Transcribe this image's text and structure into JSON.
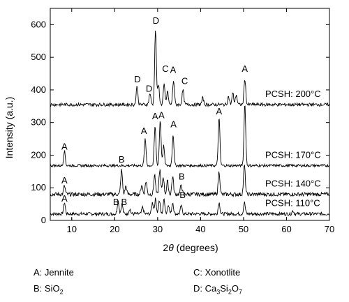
{
  "chart_data": {
    "type": "line",
    "xlabel_prefix": "2",
    "xlabel_theta": "θ",
    "xlabel_suffix": " (degrees)",
    "ylabel": "Intensity (a.u.)",
    "xlim": [
      5,
      70
    ],
    "ylim": [
      0,
      650
    ],
    "xticks": [
      10,
      20,
      30,
      40,
      50,
      60,
      70
    ],
    "yticks": [
      0,
      100,
      200,
      300,
      400,
      500,
      600
    ],
    "grid": false,
    "series": [
      {
        "name": "PCSH: 110°C",
        "baseline": 20,
        "noise": 10,
        "peaks": [
          [
            8.3,
            35
          ],
          [
            20.8,
            40
          ],
          [
            21.7,
            30
          ],
          [
            23.5,
            15
          ],
          [
            26.5,
            20
          ],
          [
            28.8,
            35
          ],
          [
            29.5,
            45
          ],
          [
            30.4,
            40
          ],
          [
            31.5,
            45
          ],
          [
            32.5,
            30
          ],
          [
            33.5,
            35
          ],
          [
            35.5,
            25
          ],
          [
            44.3,
            35
          ],
          [
            50.2,
            35
          ],
          [
            61.5,
            10
          ]
        ],
        "peak_labels": [
          [
            8.3,
            58,
            "A"
          ],
          [
            20.3,
            47,
            "B"
          ],
          [
            22.2,
            47,
            "B"
          ],
          [
            35.8,
            68,
            "B"
          ]
        ]
      },
      {
        "name": "PCSH: 140°C",
        "baseline": 80,
        "noise": 12,
        "peaks": [
          [
            8.3,
            25
          ],
          [
            21.6,
            75
          ],
          [
            22.6,
            25
          ],
          [
            26.3,
            30
          ],
          [
            27.3,
            40
          ],
          [
            29.3,
            60
          ],
          [
            30.5,
            75
          ],
          [
            31.3,
            55
          ],
          [
            32.3,
            40
          ],
          [
            33.5,
            55
          ],
          [
            35.5,
            30
          ],
          [
            44.3,
            70
          ],
          [
            50.2,
            90
          ]
        ],
        "peak_labels": [
          [
            8.3,
            113,
            "A"
          ],
          [
            21.6,
            178,
            "B"
          ],
          [
            35.6,
            125,
            "B"
          ]
        ]
      },
      {
        "name": "PCSH: 170°C",
        "baseline": 168,
        "noise": 8,
        "peaks": [
          [
            8.3,
            45
          ],
          [
            27.1,
            80
          ],
          [
            29.4,
            120
          ],
          [
            30.6,
            140
          ],
          [
            31.4,
            60
          ],
          [
            33.6,
            95
          ],
          [
            44.3,
            145
          ],
          [
            50.3,
            190
          ]
        ],
        "peak_labels": [
          [
            8.3,
            217,
            "A"
          ],
          [
            26.8,
            265,
            "A"
          ],
          [
            29.4,
            310,
            "A"
          ],
          [
            30.9,
            313,
            "A"
          ],
          [
            33.7,
            285,
            "A"
          ],
          [
            44.3,
            325,
            "A"
          ]
        ]
      },
      {
        "name": "PCSH: 200°C",
        "baseline": 355,
        "noise": 10,
        "peaks": [
          [
            25.2,
            55
          ],
          [
            28.2,
            35
          ],
          [
            29.5,
            230
          ],
          [
            30.2,
            60
          ],
          [
            31.5,
            60
          ],
          [
            32.3,
            40
          ],
          [
            33.7,
            75
          ],
          [
            35.9,
            45
          ],
          [
            40.5,
            20
          ],
          [
            46.5,
            25
          ],
          [
            47.5,
            35
          ],
          [
            48.3,
            30
          ],
          [
            50.3,
            80
          ]
        ],
        "peak_labels": [
          [
            25.3,
            423,
            "D"
          ],
          [
            28.0,
            395,
            "D"
          ],
          [
            29.6,
            603,
            "D"
          ],
          [
            31.8,
            455,
            "C"
          ],
          [
            33.6,
            452,
            "A"
          ],
          [
            36.3,
            418,
            "C"
          ],
          [
            50.3,
            455,
            "A"
          ]
        ]
      }
    ]
  },
  "legend_key": {
    "a": "A: Jennite",
    "b_prefix": "B: SiO",
    "b_sub": "2",
    "c": "C: Xonotlite",
    "d_prefix": "D: Ca",
    "d_sub1": "3",
    "d_mid": "Si",
    "d_sub2": "2",
    "d_mid2": "O",
    "d_sub3": "7"
  }
}
